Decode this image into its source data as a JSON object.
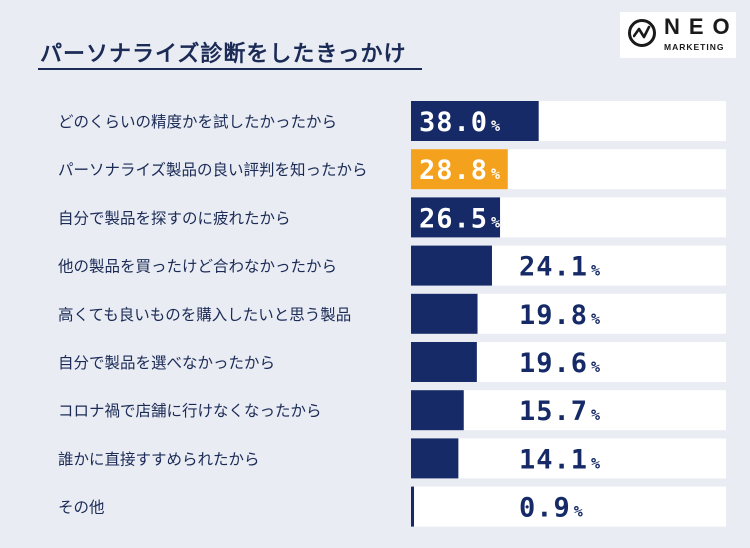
{
  "title": "パーソナライズ診断をしたきっかけ",
  "logo": {
    "name": "NEO",
    "sub": "MARKETING"
  },
  "colors": {
    "bar": "#152a66",
    "highlight": "#f4a11e",
    "track": "#ffffff",
    "text": "#1b2b56"
  },
  "chart_data": {
    "type": "bar",
    "orientation": "horizontal",
    "unit": "%",
    "categories": [
      "どのくらいの精度かを試したかったから",
      "パーソナライズ製品の良い評判を知ったから",
      "自分で製品を探すのに疲れたから",
      "他の製品を買ったけど合わなかったから",
      "高くても良いものを購入したいと思う製品",
      "自分で製品を選べなかったから",
      "コロナ禍で店舗に行けなくなったから",
      "誰かに直接すすめられたから",
      "その他"
    ],
    "values": [
      38.0,
      28.8,
      26.5,
      24.1,
      19.8,
      19.6,
      15.7,
      14.1,
      0.9
    ],
    "value_labels": [
      "38.0",
      "28.8",
      "26.5",
      "24.1",
      "19.8",
      "19.6",
      "15.7",
      "14.1",
      "0.9"
    ],
    "highlight_index": 1,
    "xlim": [
      0,
      100
    ]
  }
}
